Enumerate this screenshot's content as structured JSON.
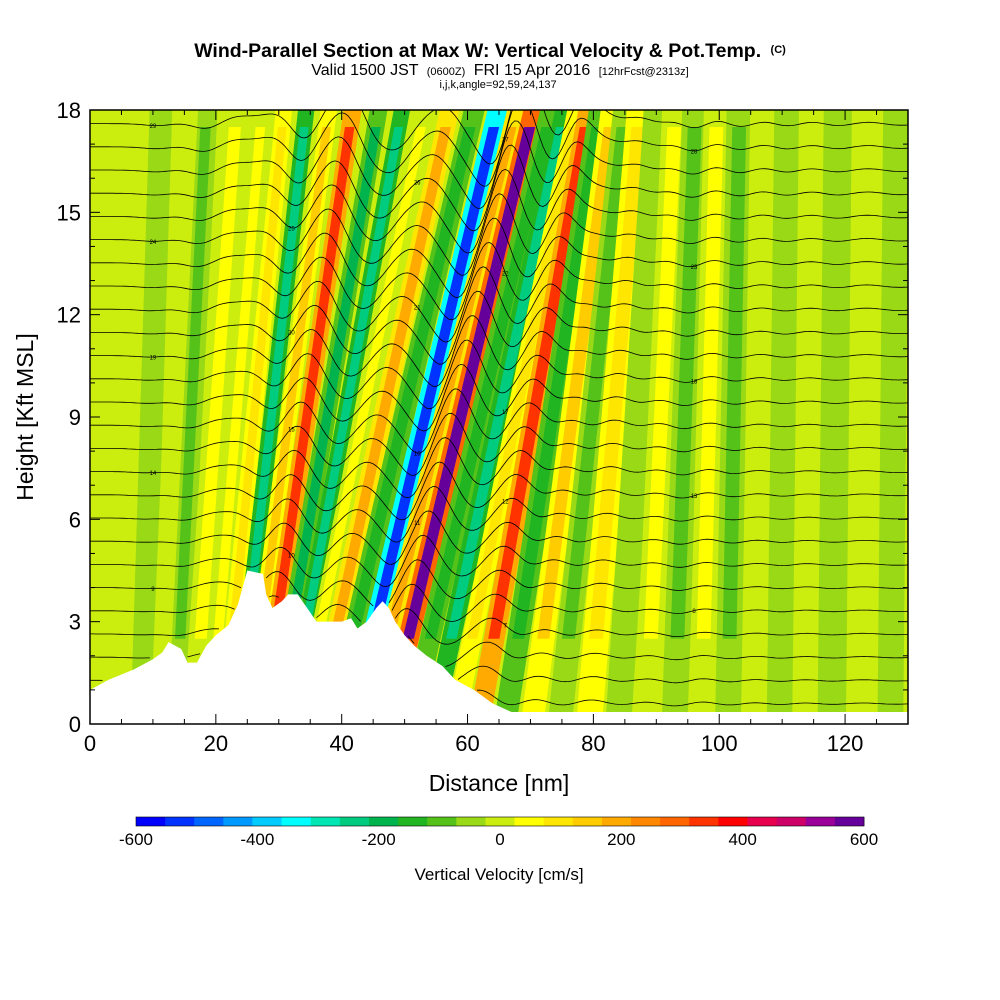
{
  "chart_data": {
    "type": "heatmap",
    "title": "Wind-Parallel Section at Max W: Vertical Velocity & Pot.Temp.",
    "title_mark": "(C)",
    "subtitle_main_a": "Valid 1500 JST",
    "subtitle_small_a": "(0600Z)",
    "subtitle_main_b": "FRI 15 Apr 2016",
    "subtitle_small_b": "[12hrFcst@2313z]",
    "subtitle2": "i,j,k,angle=92,59,24,137",
    "xlabel": "Distance [nm]",
    "ylabel": "Height [Kft MSL]",
    "xlim": [
      0,
      130
    ],
    "ylim": [
      0,
      18
    ],
    "x_ticks": [
      "0",
      "20",
      "40",
      "60",
      "80",
      "100",
      "120"
    ],
    "y_ticks": [
      "0",
      "3",
      "6",
      "9",
      "12",
      "15",
      "18"
    ],
    "colorbar": {
      "label": "Vertical Velocity [cm/s]",
      "range": [
        -600,
        600
      ],
      "step": 50,
      "ticks": [
        "-600",
        "-400",
        "-200",
        "0",
        "200",
        "400",
        "600"
      ],
      "colors": [
        "#0000ff",
        "#0033ff",
        "#0066ff",
        "#0099ff",
        "#00ccff",
        "#00ffff",
        "#00e6b3",
        "#00cc80",
        "#00b34d",
        "#22b522",
        "#55c21a",
        "#99d916",
        "#ccee0e",
        "#ffff00",
        "#ffe600",
        "#ffcc00",
        "#ffaa00",
        "#ff8800",
        "#ff6600",
        "#ff3300",
        "#ff0000",
        "#e6004d",
        "#cc0066",
        "#990099",
        "#66009a"
      ]
    },
    "vertical_velocity_bands": [
      {
        "x": 9,
        "w": -25
      },
      {
        "x": 13,
        "w": 25
      },
      {
        "x": 15,
        "w": -75
      },
      {
        "x": 19,
        "w": 75
      },
      {
        "x": 22,
        "w": 50
      },
      {
        "x": 24.5,
        "w": 120
      },
      {
        "x": 27,
        "w": -250
      },
      {
        "x": 29.5,
        "w": 150
      },
      {
        "x": 32,
        "w": 380
      },
      {
        "x": 35,
        "w": -180
      },
      {
        "x": 37.5,
        "w": -250
      },
      {
        "x": 40,
        "w": 60
      },
      {
        "x": 43,
        "w": 200
      },
      {
        "x": 46,
        "w": -120
      },
      {
        "x": 49.5,
        "w": -550
      },
      {
        "x": 52,
        "w": 220
      },
      {
        "x": 55,
        "w": 600
      },
      {
        "x": 58.5,
        "w": -150
      },
      {
        "x": 61.5,
        "w": -220
      },
      {
        "x": 64.5,
        "w": 100
      },
      {
        "x": 67.5,
        "w": 380
      },
      {
        "x": 71,
        "w": -120
      },
      {
        "x": 74.5,
        "w": 150
      },
      {
        "x": 78,
        "w": -80
      },
      {
        "x": 82,
        "w": 120
      },
      {
        "x": 86,
        "w": -50
      },
      {
        "x": 90,
        "w": 60
      },
      {
        "x": 94,
        "w": -90
      },
      {
        "x": 98,
        "w": 70
      },
      {
        "x": 102,
        "w": -60
      },
      {
        "x": 106,
        "w": 40
      },
      {
        "x": 110,
        "w": -40
      },
      {
        "x": 114,
        "w": 30
      },
      {
        "x": 118,
        "w": -30
      },
      {
        "x": 123,
        "w": 20
      },
      {
        "x": 128,
        "w": -20
      }
    ],
    "terrain": [
      [
        0,
        1.0
      ],
      [
        3,
        1.3
      ],
      [
        7,
        1.6
      ],
      [
        10,
        1.9
      ],
      [
        11.5,
        2.1
      ],
      [
        12.5,
        2.4
      ],
      [
        14.5,
        2.2
      ],
      [
        15.5,
        1.8
      ],
      [
        17,
        1.8
      ],
      [
        18.5,
        2.3
      ],
      [
        20,
        2.6
      ],
      [
        22,
        2.9
      ],
      [
        23.5,
        3.5
      ],
      [
        25,
        4.5
      ],
      [
        27.5,
        4.4
      ],
      [
        28,
        3.8
      ],
      [
        29,
        3.4
      ],
      [
        30.5,
        3.6
      ],
      [
        31.5,
        3.8
      ],
      [
        33,
        3.8
      ],
      [
        34.5,
        3.4
      ],
      [
        36,
        3.0
      ],
      [
        38.5,
        3.0
      ],
      [
        40,
        3.0
      ],
      [
        41.5,
        3.1
      ],
      [
        42.5,
        2.8
      ],
      [
        44,
        3.0
      ],
      [
        45.5,
        3.4
      ],
      [
        46.5,
        3.6
      ],
      [
        47.5,
        3.4
      ],
      [
        48.5,
        3.0
      ],
      [
        50,
        2.6
      ],
      [
        51.5,
        2.3
      ],
      [
        53.5,
        2.0
      ],
      [
        56,
        1.7
      ],
      [
        58,
        1.3
      ],
      [
        61,
        1.0
      ],
      [
        64,
        0.6
      ],
      [
        67,
        0.35
      ],
      [
        70,
        0.35
      ],
      [
        130,
        0.35
      ]
    ],
    "theta_labels": [
      "4",
      "5",
      "6",
      "7",
      "8",
      "9",
      "10",
      "11",
      "12",
      "13",
      "14",
      "15",
      "16",
      "17",
      "18",
      "19",
      "20",
      "21",
      "22",
      "23",
      "24",
      "25",
      "26",
      "27",
      "28",
      "29"
    ]
  }
}
